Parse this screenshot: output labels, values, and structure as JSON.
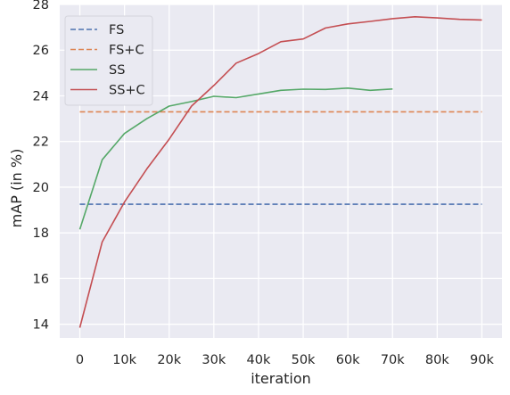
{
  "chart_data": {
    "type": "line",
    "xlabel": "iteration",
    "ylabel": "mAP (in %)",
    "xlim": [
      -4500,
      94500
    ],
    "ylim": [
      13.4,
      28
    ],
    "x_ticks": [
      {
        "value": 0,
        "label": "0"
      },
      {
        "value": 10000,
        "label": "10k"
      },
      {
        "value": 20000,
        "label": "20k"
      },
      {
        "value": 30000,
        "label": "30k"
      },
      {
        "value": 40000,
        "label": "40k"
      },
      {
        "value": 50000,
        "label": "50k"
      },
      {
        "value": 60000,
        "label": "60k"
      },
      {
        "value": 70000,
        "label": "70k"
      },
      {
        "value": 80000,
        "label": "80k"
      },
      {
        "value": 90000,
        "label": "90k"
      }
    ],
    "y_ticks": [
      {
        "value": 14,
        "label": "14"
      },
      {
        "value": 16,
        "label": "16"
      },
      {
        "value": 18,
        "label": "18"
      },
      {
        "value": 20,
        "label": "20"
      },
      {
        "value": 22,
        "label": "22"
      },
      {
        "value": 24,
        "label": "24"
      },
      {
        "value": 26,
        "label": "26"
      },
      {
        "value": 28,
        "label": "28"
      }
    ],
    "grid": true,
    "legend_position": "top-left",
    "series": [
      {
        "name": "FS",
        "color": "#4c72b0",
        "dashed": true,
        "x": [
          0,
          90000
        ],
        "y": [
          19.25,
          19.25
        ]
      },
      {
        "name": "FS+C",
        "color": "#dd8452",
        "dashed": true,
        "x": [
          0,
          90000
        ],
        "y": [
          23.3,
          23.3
        ]
      },
      {
        "name": "SS",
        "color": "#55a868",
        "dashed": false,
        "x": [
          0,
          5000,
          10000,
          15000,
          20000,
          25000,
          30000,
          35000,
          40000,
          45000,
          50000,
          55000,
          60000,
          65000,
          70000
        ],
        "y": [
          18.15,
          21.2,
          22.35,
          23.0,
          23.55,
          23.75,
          23.98,
          23.92,
          24.08,
          24.24,
          24.29,
          24.28,
          24.34,
          24.24,
          24.3
        ]
      },
      {
        "name": "SS+C",
        "color": "#c44e52",
        "dashed": false,
        "x": [
          0,
          5000,
          10000,
          15000,
          20000,
          25000,
          30000,
          35000,
          40000,
          45000,
          50000,
          55000,
          60000,
          65000,
          70000,
          75000,
          80000,
          85000,
          90000
        ],
        "y": [
          13.85,
          17.6,
          19.35,
          20.8,
          22.1,
          23.55,
          24.45,
          25.43,
          25.85,
          26.37,
          26.49,
          26.97,
          27.15,
          27.26,
          27.38,
          27.46,
          27.41,
          27.35,
          27.32
        ]
      }
    ]
  }
}
